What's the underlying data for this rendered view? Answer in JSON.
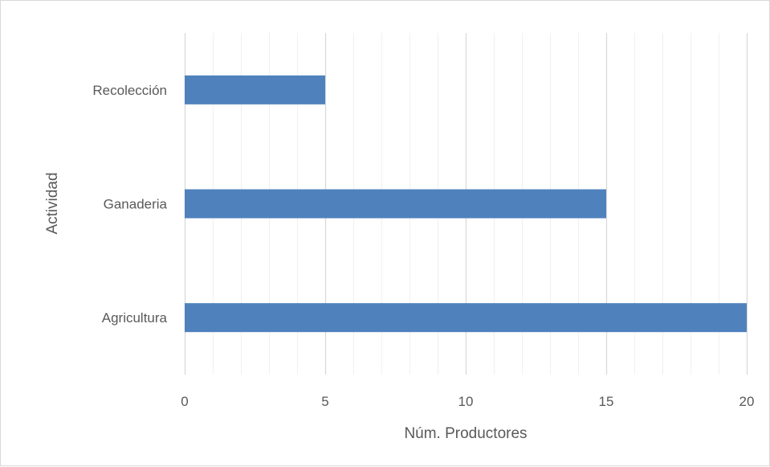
{
  "chart_data": {
    "type": "bar",
    "orientation": "horizontal",
    "categories": [
      "Agricultura",
      "Ganaderia",
      "Recolección"
    ],
    "values": [
      20,
      15,
      5
    ],
    "xlabel": "Núm. Productores",
    "ylabel": "Actividad",
    "xlim": [
      0,
      20
    ],
    "x_ticks": [
      0,
      5,
      10,
      15,
      20
    ],
    "grid": "vertical major and minor",
    "legend": "none",
    "bar_color": "#4f81bd",
    "major_grid_color": "#d9d9d9",
    "minor_grid_color": "#f0f0f0"
  }
}
